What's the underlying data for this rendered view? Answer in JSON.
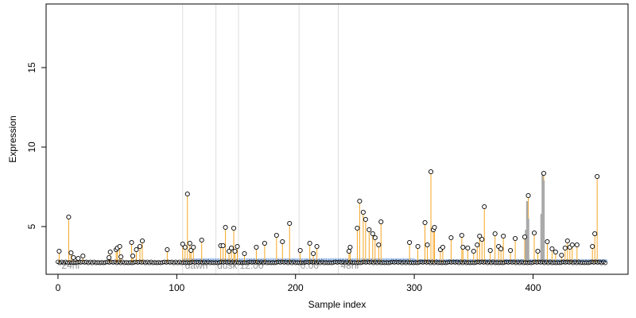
{
  "chart_data": {
    "type": "scatter",
    "title": "",
    "xlabel": "Sample index",
    "ylabel": "Expression",
    "xlim": [
      -10,
      480
    ],
    "ylim": [
      2.0,
      19.0
    ],
    "x_ticks": [
      0,
      100,
      200,
      300,
      400
    ],
    "y_ticks": [
      5,
      10,
      15
    ],
    "baseline": 2.75,
    "stem_color_high": "#f5a623",
    "stem_color_low": "#7fa8e0",
    "stem_color_grey": "#aaaaaa",
    "vertical_guides": [
      105,
      133,
      152,
      203,
      236
    ],
    "guide_color": "#dddddd",
    "annotations": [
      {
        "text": "24hr",
        "x": 3
      },
      {
        "text": "dawn",
        "x": 107
      },
      {
        "text": "dusk",
        "x": 134
      },
      {
        "text": "12:00",
        "x": 153
      },
      {
        "text": "0:00",
        "x": 204
      },
      {
        "text": "48hr",
        "x": 238
      }
    ],
    "low_stem_ranges": [
      [
        105,
        300
      ],
      [
        300,
        462
      ]
    ],
    "low_stem_values": [
      3.0,
      2.95
    ],
    "grey_series": [
      {
        "x": 394,
        "y": 4.8
      },
      {
        "x": 395,
        "y": 6.6
      },
      {
        "x": 396,
        "y": 5.5
      },
      {
        "x": 407,
        "y": 5.8
      },
      {
        "x": 408,
        "y": 8.3
      },
      {
        "x": 409,
        "y": 7.9
      }
    ],
    "points": [
      {
        "x": 1,
        "y": 3.45
      },
      {
        "x": 9,
        "y": 5.6
      },
      {
        "x": 11,
        "y": 3.35
      },
      {
        "x": 13,
        "y": 3.05
      },
      {
        "x": 17,
        "y": 3.0
      },
      {
        "x": 21,
        "y": 3.15
      },
      {
        "x": 43,
        "y": 3.05
      },
      {
        "x": 44,
        "y": 3.4
      },
      {
        "x": 49,
        "y": 3.55
      },
      {
        "x": 50,
        "y": 3.65
      },
      {
        "x": 52,
        "y": 3.75
      },
      {
        "x": 53,
        "y": 3.1
      },
      {
        "x": 62,
        "y": 4.0
      },
      {
        "x": 63,
        "y": 3.15
      },
      {
        "x": 66,
        "y": 3.55
      },
      {
        "x": 69,
        "y": 3.75
      },
      {
        "x": 71,
        "y": 4.1
      },
      {
        "x": 92,
        "y": 3.55
      },
      {
        "x": 105,
        "y": 3.9
      },
      {
        "x": 107,
        "y": 3.7
      },
      {
        "x": 109,
        "y": 7.05
      },
      {
        "x": 111,
        "y": 3.95
      },
      {
        "x": 112,
        "y": 3.5
      },
      {
        "x": 114,
        "y": 3.7
      },
      {
        "x": 121,
        "y": 4.15
      },
      {
        "x": 137,
        "y": 3.8
      },
      {
        "x": 139,
        "y": 3.8
      },
      {
        "x": 141,
        "y": 4.95
      },
      {
        "x": 144,
        "y": 3.45
      },
      {
        "x": 146,
        "y": 3.65
      },
      {
        "x": 148,
        "y": 4.9
      },
      {
        "x": 149,
        "y": 3.45
      },
      {
        "x": 151,
        "y": 3.75
      },
      {
        "x": 157,
        "y": 3.3
      },
      {
        "x": 167,
        "y": 3.7
      },
      {
        "x": 174,
        "y": 3.95
      },
      {
        "x": 184,
        "y": 4.45
      },
      {
        "x": 189,
        "y": 4.05
      },
      {
        "x": 195,
        "y": 5.2
      },
      {
        "x": 204,
        "y": 3.5
      },
      {
        "x": 212,
        "y": 3.95
      },
      {
        "x": 215,
        "y": 3.3
      },
      {
        "x": 218,
        "y": 3.75
      },
      {
        "x": 245,
        "y": 3.45
      },
      {
        "x": 246,
        "y": 3.7
      },
      {
        "x": 252,
        "y": 4.9
      },
      {
        "x": 254,
        "y": 6.6
      },
      {
        "x": 257,
        "y": 5.9
      },
      {
        "x": 259,
        "y": 5.45
      },
      {
        "x": 262,
        "y": 4.8
      },
      {
        "x": 265,
        "y": 4.55
      },
      {
        "x": 267,
        "y": 4.3
      },
      {
        "x": 270,
        "y": 3.85
      },
      {
        "x": 272,
        "y": 5.3
      },
      {
        "x": 296,
        "y": 4.0
      },
      {
        "x": 303,
        "y": 3.75
      },
      {
        "x": 309,
        "y": 5.25
      },
      {
        "x": 311,
        "y": 3.85
      },
      {
        "x": 314,
        "y": 8.45
      },
      {
        "x": 316,
        "y": 4.8
      },
      {
        "x": 317,
        "y": 4.95
      },
      {
        "x": 322,
        "y": 3.55
      },
      {
        "x": 324,
        "y": 3.7
      },
      {
        "x": 331,
        "y": 4.3
      },
      {
        "x": 340,
        "y": 4.45
      },
      {
        "x": 341,
        "y": 3.7
      },
      {
        "x": 345,
        "y": 3.65
      },
      {
        "x": 350,
        "y": 3.45
      },
      {
        "x": 353,
        "y": 3.85
      },
      {
        "x": 355,
        "y": 4.4
      },
      {
        "x": 357,
        "y": 4.2
      },
      {
        "x": 359,
        "y": 6.25
      },
      {
        "x": 364,
        "y": 3.5
      },
      {
        "x": 368,
        "y": 4.55
      },
      {
        "x": 371,
        "y": 3.75
      },
      {
        "x": 373,
        "y": 3.6
      },
      {
        "x": 375,
        "y": 4.4
      },
      {
        "x": 381,
        "y": 3.5
      },
      {
        "x": 385,
        "y": 4.25
      },
      {
        "x": 393,
        "y": 4.35
      },
      {
        "x": 396,
        "y": 6.95
      },
      {
        "x": 401,
        "y": 4.6
      },
      {
        "x": 404,
        "y": 3.45
      },
      {
        "x": 409,
        "y": 8.35
      },
      {
        "x": 412,
        "y": 4.05
      },
      {
        "x": 416,
        "y": 3.6
      },
      {
        "x": 419,
        "y": 3.4
      },
      {
        "x": 424,
        "y": 3.2
      },
      {
        "x": 427,
        "y": 3.65
      },
      {
        "x": 429,
        "y": 4.1
      },
      {
        "x": 431,
        "y": 3.7
      },
      {
        "x": 433,
        "y": 3.85
      },
      {
        "x": 437,
        "y": 3.85
      },
      {
        "x": 450,
        "y": 3.75
      },
      {
        "x": 452,
        "y": 4.55
      },
      {
        "x": 454,
        "y": 8.15
      }
    ]
  }
}
